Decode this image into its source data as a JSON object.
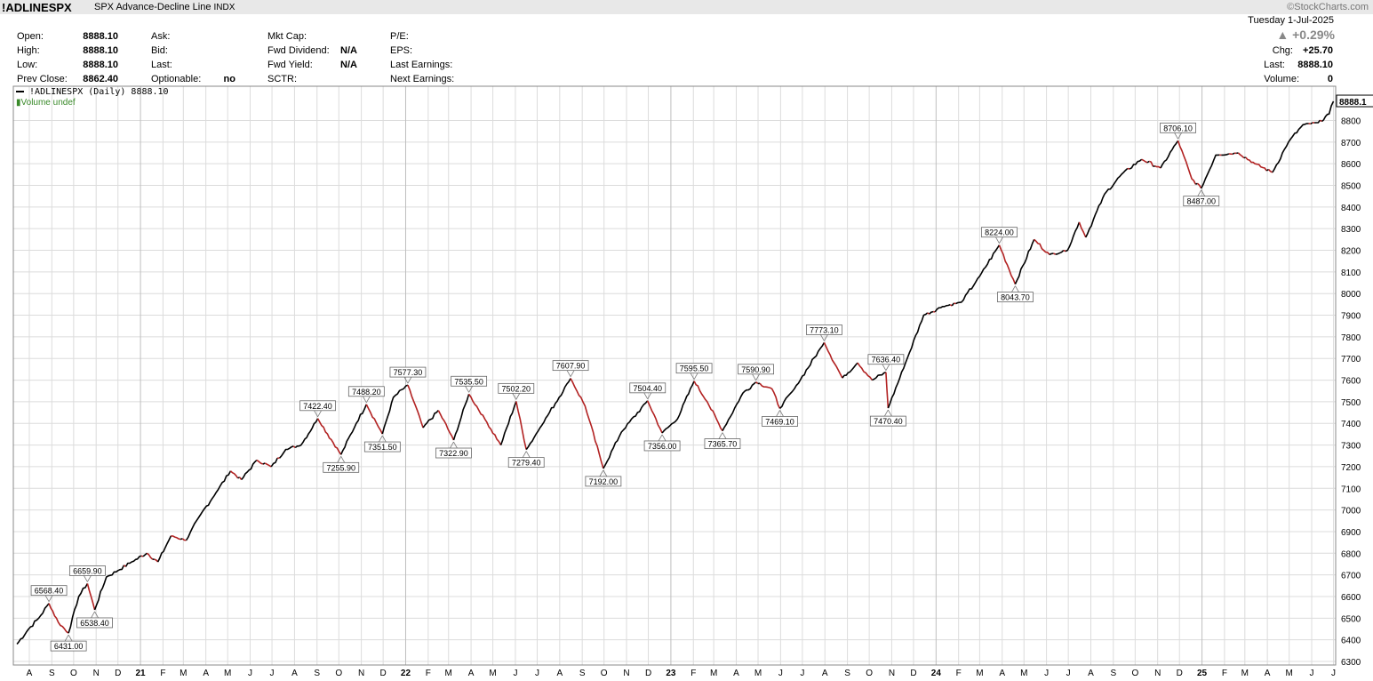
{
  "header": {
    "symbol": "!ADLINESPX",
    "description": "SPX Advance-Decline Line",
    "exchange": "INDX",
    "credit": "©StockCharts.com",
    "date": "Tuesday  1-Jul-2025",
    "change_pct": "+0.29%",
    "chg_label": "Chg:",
    "chg_value": "+25.70",
    "last_label": "Last:",
    "last_value": "8888.10",
    "volume_label": "Volume:",
    "volume_value": "0"
  },
  "info": {
    "open_label": "Open:",
    "open": "8888.10",
    "high_label": "High:",
    "high": "8888.10",
    "low_label": "Low:",
    "low": "8888.10",
    "prev_label": "Prev Close:",
    "prev": "8862.40",
    "ask_label": "Ask:",
    "bid_label": "Bid:",
    "last_label": "Last:",
    "optionable_label": "Optionable:",
    "optionable": "no",
    "mktcap_label": "Mkt Cap:",
    "fwddiv_label": "Fwd Dividend:",
    "fwddiv": "N/A",
    "fwdyield_label": "Fwd Yield:",
    "fwdyield": "N/A",
    "sctr_label": "SCTR:",
    "pe_label": "P/E:",
    "eps_label": "EPS:",
    "lastearn_label": "Last Earnings:",
    "nextearn_label": "Next Earnings:"
  },
  "legend": {
    "series": "!ADLINESPX (Daily) 8888.10",
    "volume": "Volume undef"
  },
  "colors": {
    "up": "#000000",
    "down": "#b22222",
    "grid": "#dcdcdc",
    "label_border": "#666666"
  },
  "chart_data": {
    "type": "line",
    "title": "SPX Advance-Decline Line",
    "ylim": [
      6300,
      8880
    ],
    "ytick_values": [
      6300,
      6400,
      6500,
      6600,
      6700,
      6800,
      6900,
      7000,
      7100,
      7200,
      7300,
      7400,
      7500,
      7600,
      7700,
      7800,
      7900,
      8000,
      8100,
      8200,
      8300,
      8400,
      8500,
      8600,
      8700,
      8800
    ],
    "last_label": "8888.1",
    "x_ticks": [
      {
        "label": "A",
        "date": "2020-08"
      },
      {
        "label": "S",
        "date": "2020-09"
      },
      {
        "label": "O",
        "date": "2020-10"
      },
      {
        "label": "N",
        "date": "2020-11"
      },
      {
        "label": "D",
        "date": "2020-12"
      },
      {
        "label": "21",
        "date": "2021-01"
      },
      {
        "label": "F",
        "date": "2021-02"
      },
      {
        "label": "M",
        "date": "2021-03"
      },
      {
        "label": "A",
        "date": "2021-04"
      },
      {
        "label": "M",
        "date": "2021-05"
      },
      {
        "label": "J",
        "date": "2021-06"
      },
      {
        "label": "J",
        "date": "2021-07"
      },
      {
        "label": "A",
        "date": "2021-08"
      },
      {
        "label": "S",
        "date": "2021-09"
      },
      {
        "label": "O",
        "date": "2021-10"
      },
      {
        "label": "N",
        "date": "2021-11"
      },
      {
        "label": "D",
        "date": "2021-12"
      },
      {
        "label": "22",
        "date": "2022-01"
      },
      {
        "label": "F",
        "date": "2022-02"
      },
      {
        "label": "M",
        "date": "2022-03"
      },
      {
        "label": "A",
        "date": "2022-04"
      },
      {
        "label": "M",
        "date": "2022-05"
      },
      {
        "label": "J",
        "date": "2022-06"
      },
      {
        "label": "J",
        "date": "2022-07"
      },
      {
        "label": "A",
        "date": "2022-08"
      },
      {
        "label": "S",
        "date": "2022-09"
      },
      {
        "label": "O",
        "date": "2022-10"
      },
      {
        "label": "N",
        "date": "2022-11"
      },
      {
        "label": "D",
        "date": "2022-12"
      },
      {
        "label": "23",
        "date": "2023-01"
      },
      {
        "label": "F",
        "date": "2023-02"
      },
      {
        "label": "M",
        "date": "2023-03"
      },
      {
        "label": "A",
        "date": "2023-04"
      },
      {
        "label": "M",
        "date": "2023-05"
      },
      {
        "label": "J",
        "date": "2023-06"
      },
      {
        "label": "J",
        "date": "2023-07"
      },
      {
        "label": "A",
        "date": "2023-08"
      },
      {
        "label": "S",
        "date": "2023-09"
      },
      {
        "label": "O",
        "date": "2023-10"
      },
      {
        "label": "N",
        "date": "2023-11"
      },
      {
        "label": "D",
        "date": "2023-12"
      },
      {
        "label": "24",
        "date": "2024-01"
      },
      {
        "label": "F",
        "date": "2024-02"
      },
      {
        "label": "M",
        "date": "2024-03"
      },
      {
        "label": "A",
        "date": "2024-04"
      },
      {
        "label": "M",
        "date": "2024-05"
      },
      {
        "label": "J",
        "date": "2024-06"
      },
      {
        "label": "J",
        "date": "2024-07"
      },
      {
        "label": "A",
        "date": "2024-08"
      },
      {
        "label": "S",
        "date": "2024-09"
      },
      {
        "label": "O",
        "date": "2024-10"
      },
      {
        "label": "N",
        "date": "2024-11"
      },
      {
        "label": "D",
        "date": "2024-12"
      },
      {
        "label": "25",
        "date": "2025-01"
      },
      {
        "label": "F",
        "date": "2025-02"
      },
      {
        "label": "M",
        "date": "2025-03"
      },
      {
        "label": "A",
        "date": "2025-04"
      },
      {
        "label": "M",
        "date": "2025-05"
      },
      {
        "label": "J",
        "date": "2025-06"
      },
      {
        "label": "J",
        "date": "2025-07"
      }
    ],
    "series": [
      {
        "name": "!ADLINESPX (Daily)",
        "points": [
          [
            "2020-07-15",
            6380
          ],
          [
            "2020-07-31",
            6450
          ],
          [
            "2020-08-14",
            6500
          ],
          [
            "2020-08-28",
            6568.4
          ],
          [
            "2020-09-10",
            6480
          ],
          [
            "2020-09-24",
            6431
          ],
          [
            "2020-10-08",
            6600
          ],
          [
            "2020-10-20",
            6659.9
          ],
          [
            "2020-10-30",
            6538.4
          ],
          [
            "2020-11-15",
            6690
          ],
          [
            "2020-12-01",
            6720
          ],
          [
            "2020-12-20",
            6760
          ],
          [
            "2021-01-10",
            6800
          ],
          [
            "2021-01-25",
            6760
          ],
          [
            "2021-02-12",
            6880
          ],
          [
            "2021-03-05",
            6860
          ],
          [
            "2021-03-25",
            6980
          ],
          [
            "2021-04-15",
            7080
          ],
          [
            "2021-05-05",
            7180
          ],
          [
            "2021-05-20",
            7140
          ],
          [
            "2021-06-10",
            7230
          ],
          [
            "2021-06-30",
            7200
          ],
          [
            "2021-07-20",
            7280
          ],
          [
            "2021-08-10",
            7300
          ],
          [
            "2021-09-02",
            7422.4
          ],
          [
            "2021-10-04",
            7255.9
          ],
          [
            "2021-10-25",
            7400
          ],
          [
            "2021-11-08",
            7488.2
          ],
          [
            "2021-11-30",
            7351.5
          ],
          [
            "2021-12-15",
            7520
          ],
          [
            "2022-01-04",
            7577.3
          ],
          [
            "2022-01-25",
            7380
          ],
          [
            "2022-02-15",
            7460
          ],
          [
            "2022-03-08",
            7322.9
          ],
          [
            "2022-03-29",
            7535.5
          ],
          [
            "2022-04-20",
            7420
          ],
          [
            "2022-05-12",
            7300
          ],
          [
            "2022-06-02",
            7502.2
          ],
          [
            "2022-06-16",
            7279.4
          ],
          [
            "2022-07-05",
            7380
          ],
          [
            "2022-08-16",
            7607.9
          ],
          [
            "2022-09-05",
            7480
          ],
          [
            "2022-09-30",
            7192
          ],
          [
            "2022-10-25",
            7360
          ],
          [
            "2022-11-30",
            7504.4
          ],
          [
            "2022-12-20",
            7356
          ],
          [
            "2023-01-10",
            7420
          ],
          [
            "2023-02-02",
            7595.5
          ],
          [
            "2023-02-20",
            7500
          ],
          [
            "2023-03-13",
            7365.7
          ],
          [
            "2023-04-10",
            7540
          ],
          [
            "2023-04-28",
            7590.9
          ],
          [
            "2023-05-20",
            7560
          ],
          [
            "2023-05-31",
            7469.1
          ],
          [
            "2023-06-20",
            7560
          ],
          [
            "2023-07-31",
            7773.1
          ],
          [
            "2023-08-25",
            7610
          ],
          [
            "2023-09-15",
            7680
          ],
          [
            "2023-10-05",
            7600
          ],
          [
            "2023-10-24",
            7636.4
          ],
          [
            "2023-10-27",
            7470.4
          ],
          [
            "2023-11-20",
            7680
          ],
          [
            "2023-12-15",
            7900
          ],
          [
            "2024-01-10",
            7940
          ],
          [
            "2024-02-05",
            7960
          ],
          [
            "2024-03-01",
            8080
          ],
          [
            "2024-03-28",
            8224
          ],
          [
            "2024-04-19",
            8043.7
          ],
          [
            "2024-05-15",
            8250
          ],
          [
            "2024-06-05",
            8180
          ],
          [
            "2024-06-30",
            8200
          ],
          [
            "2024-07-16",
            8330
          ],
          [
            "2024-07-25",
            8260
          ],
          [
            "2024-08-20",
            8460
          ],
          [
            "2024-09-15",
            8560
          ],
          [
            "2024-10-10",
            8620
          ],
          [
            "2024-11-05",
            8580
          ],
          [
            "2024-11-29",
            8706.1
          ],
          [
            "2024-12-18",
            8530
          ],
          [
            "2024-12-31",
            8487
          ],
          [
            "2025-01-20",
            8640
          ],
          [
            "2025-02-20",
            8650
          ],
          [
            "2025-03-15",
            8600
          ],
          [
            "2025-04-08",
            8560
          ],
          [
            "2025-04-30",
            8700
          ],
          [
            "2025-05-20",
            8780
          ],
          [
            "2025-06-10",
            8790
          ],
          [
            "2025-06-25",
            8830
          ],
          [
            "2025-07-01",
            8888.1
          ]
        ]
      }
    ],
    "annotations": [
      {
        "date": "2020-08-28",
        "value": 6568.4,
        "text": "6568.40",
        "pos": "above"
      },
      {
        "date": "2020-09-24",
        "value": 6431,
        "text": "6431.00",
        "pos": "below"
      },
      {
        "date": "2020-10-20",
        "value": 6659.9,
        "text": "6659.90",
        "pos": "above"
      },
      {
        "date": "2020-10-30",
        "value": 6538.4,
        "text": "6538.40",
        "pos": "below"
      },
      {
        "date": "2021-09-02",
        "value": 7422.4,
        "text": "7422.40",
        "pos": "above"
      },
      {
        "date": "2021-10-04",
        "value": 7255.9,
        "text": "7255.90",
        "pos": "below"
      },
      {
        "date": "2021-11-08",
        "value": 7488.2,
        "text": "7488.20",
        "pos": "above"
      },
      {
        "date": "2021-11-30",
        "value": 7351.5,
        "text": "7351.50",
        "pos": "below"
      },
      {
        "date": "2022-01-04",
        "value": 7577.3,
        "text": "7577.30",
        "pos": "above"
      },
      {
        "date": "2022-03-08",
        "value": 7322.9,
        "text": "7322.90",
        "pos": "below"
      },
      {
        "date": "2022-03-29",
        "value": 7535.5,
        "text": "7535.50",
        "pos": "above"
      },
      {
        "date": "2022-06-02",
        "value": 7502.2,
        "text": "7502.20",
        "pos": "above"
      },
      {
        "date": "2022-06-16",
        "value": 7279.4,
        "text": "7279.40",
        "pos": "below"
      },
      {
        "date": "2022-08-16",
        "value": 7607.9,
        "text": "7607.90",
        "pos": "above"
      },
      {
        "date": "2022-09-30",
        "value": 7192,
        "text": "7192.00",
        "pos": "below"
      },
      {
        "date": "2022-11-30",
        "value": 7504.4,
        "text": "7504.40",
        "pos": "above"
      },
      {
        "date": "2022-12-20",
        "value": 7356,
        "text": "7356.00",
        "pos": "below"
      },
      {
        "date": "2023-02-02",
        "value": 7595.5,
        "text": "7595.50",
        "pos": "above"
      },
      {
        "date": "2023-03-13",
        "value": 7365.7,
        "text": "7365.70",
        "pos": "below"
      },
      {
        "date": "2023-04-28",
        "value": 7590.9,
        "text": "7590.90",
        "pos": "above"
      },
      {
        "date": "2023-05-31",
        "value": 7469.1,
        "text": "7469.10",
        "pos": "below"
      },
      {
        "date": "2023-07-31",
        "value": 7773.1,
        "text": "7773.10",
        "pos": "above"
      },
      {
        "date": "2023-10-24",
        "value": 7636.4,
        "text": "7636.40",
        "pos": "above"
      },
      {
        "date": "2023-10-27",
        "value": 7470.4,
        "text": "7470.40",
        "pos": "below"
      },
      {
        "date": "2024-03-28",
        "value": 8224,
        "text": "8224.00",
        "pos": "above"
      },
      {
        "date": "2024-04-19",
        "value": 8043.7,
        "text": "8043.70",
        "pos": "below"
      },
      {
        "date": "2024-11-29",
        "value": 8706.1,
        "text": "8706.10",
        "pos": "above"
      },
      {
        "date": "2024-12-31",
        "value": 8487,
        "text": "8487.00",
        "pos": "below"
      }
    ]
  }
}
